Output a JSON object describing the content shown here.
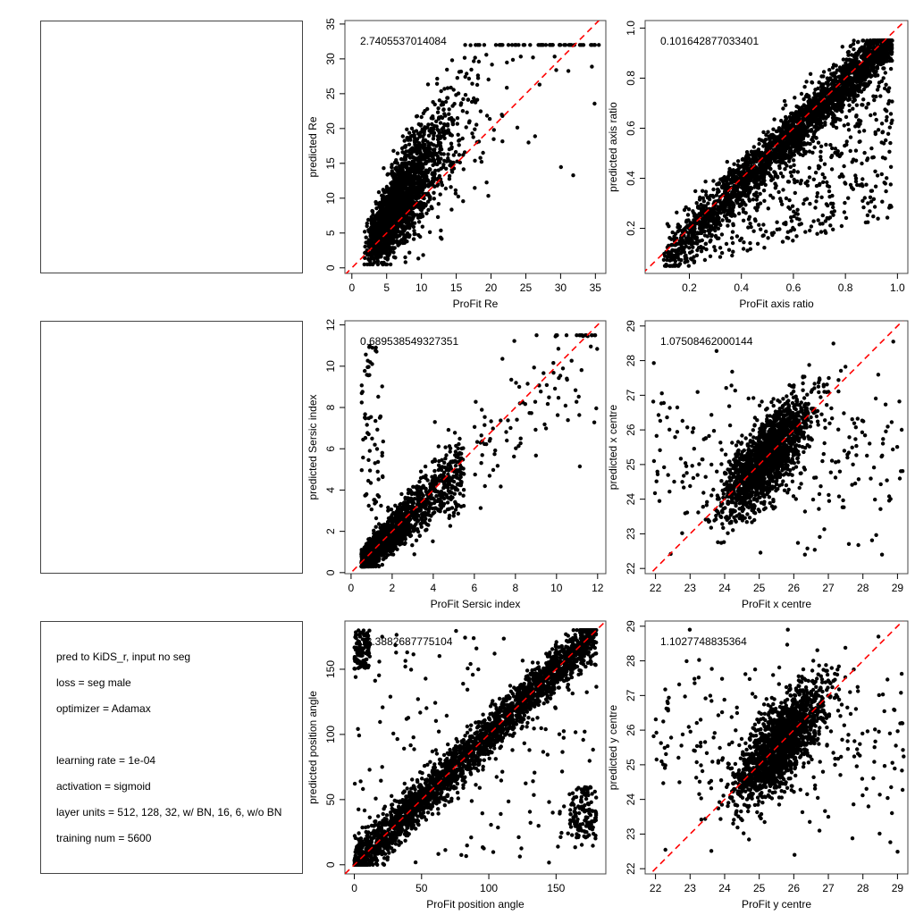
{
  "info_panel": {
    "lines": [
      "pred to KiDS_r, input no seg",
      "loss = seg male",
      "optimizer = Adamax",
      "",
      "learning rate = 1e-04",
      "activation = sigmoid",
      "layer units = 512, 128, 32, w/ BN, 16, 6, w/o BN",
      "training num = 5600"
    ]
  },
  "chart_data": [
    {
      "type": "scatter",
      "panel": "row1-col2",
      "xlabel": "ProFit Re",
      "ylabel": "predicted Re",
      "annotation": "2.7405537014084",
      "xlim": [
        -1,
        36.5
      ],
      "ylim": [
        -0.8,
        35.5
      ],
      "xticks": [
        0,
        5,
        10,
        15,
        20,
        25,
        30,
        35
      ],
      "yticks": [
        0,
        5,
        10,
        15,
        20,
        25,
        30,
        35
      ],
      "reference_line": "y = x, red dashed",
      "point_color": "#000000",
      "distribution": "dense cloud around x 5-12, y 8-22, fanning up to ~32; few outliers out to x 35"
    },
    {
      "type": "scatter",
      "panel": "row1-col3",
      "xlabel": "ProFit axis ratio",
      "ylabel": "predicted axis ratio",
      "annotation": "0.101642877033401",
      "xlim": [
        0.03,
        1.04
      ],
      "ylim": [
        0.02,
        1.03
      ],
      "xticks": [
        0.2,
        0.4,
        0.6,
        0.8,
        1.0
      ],
      "xtick_labels": [
        "0.2",
        "0.4",
        "0.6",
        "0.8",
        "1.0"
      ],
      "yticks": [
        0.2,
        0.4,
        0.6,
        0.8,
        1.0
      ],
      "ytick_labels": [
        "0.2",
        "0.4",
        "0.6",
        "0.8",
        "1.0"
      ],
      "reference_line": "y = x, red dashed",
      "point_color": "#000000",
      "distribution": "tight band along y=x from 0.1 to 0.95, scatter below the line"
    },
    {
      "type": "scatter",
      "panel": "row2-col2",
      "xlabel": "ProFit Sersic index",
      "ylabel": "predicted Sersic index",
      "annotation": "0.689538549327351",
      "xlim": [
        -0.3,
        12.4
      ],
      "ylim": [
        -0.05,
        12.2
      ],
      "xticks": [
        0,
        2,
        4,
        6,
        8,
        10,
        12
      ],
      "yticks": [
        0,
        2,
        4,
        6,
        8,
        10,
        12
      ],
      "reference_line": "y = x, red dashed",
      "point_color": "#000000",
      "distribution": "dense near x 0.5-4, y 0.5-4; column of outliers at x~0.5-1 up to y 11"
    },
    {
      "type": "scatter",
      "panel": "row2-col3",
      "xlabel": "ProFit x centre",
      "ylabel": "predicted x centre",
      "annotation": "1.07508462000144",
      "xlim": [
        21.7,
        29.3
      ],
      "ylim": [
        21.85,
        29.15
      ],
      "xticks": [
        22,
        23,
        24,
        25,
        26,
        27,
        28,
        29
      ],
      "yticks": [
        22,
        23,
        24,
        25,
        26,
        27,
        28,
        29
      ],
      "reference_line": "y = x, red dashed",
      "point_color": "#000000",
      "distribution": "elongated cluster centred ~(25.2, 25.2) along y=x, broad outliers"
    },
    {
      "type": "scatter",
      "panel": "row3-col2",
      "xlabel": "ProFit position angle",
      "ylabel": "predicted position angle",
      "annotation": "18.3882687775104",
      "xlim": [
        -7,
        187
      ],
      "ylim": [
        -7,
        187
      ],
      "xticks": [
        0,
        50,
        100,
        150
      ],
      "yticks": [
        0,
        50,
        100,
        150
      ],
      "reference_line": "y = x, red dashed",
      "point_color": "#000000",
      "distribution": "strong band along y=x over 0-180; wrap-around points near (0,180) and (180,0)"
    },
    {
      "type": "scatter",
      "panel": "row3-col3",
      "xlabel": "ProFit y centre",
      "ylabel": "predicted y centre",
      "annotation": "1.1027748835364",
      "xlim": [
        21.7,
        29.3
      ],
      "ylim": [
        21.85,
        29.15
      ],
      "xticks": [
        22,
        23,
        24,
        25,
        26,
        27,
        28,
        29
      ],
      "yticks": [
        22,
        23,
        24,
        25,
        26,
        27,
        28,
        29
      ],
      "reference_line": "y = x, red dashed",
      "point_color": "#000000",
      "distribution": "elongated cluster centred ~(25.6, 25.7) along y=x, broad outliers"
    }
  ]
}
